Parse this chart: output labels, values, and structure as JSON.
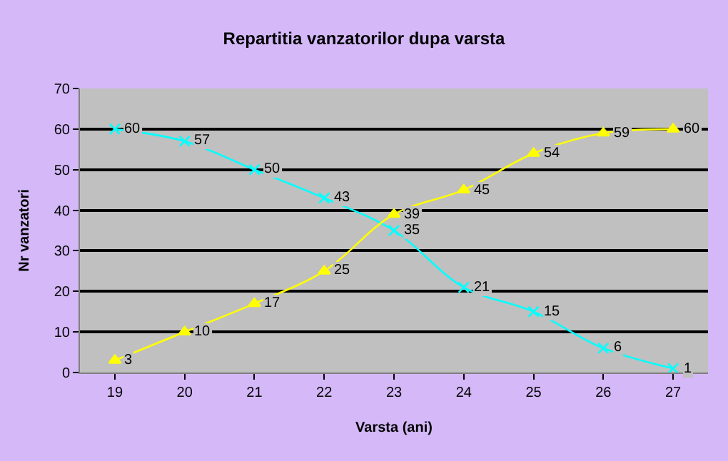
{
  "chart_data": {
    "type": "line",
    "title": "Repartitia vanzatorilor dupa varsta",
    "xlabel": "Varsta (ani)",
    "ylabel": "Nr vanzatori",
    "categories": [
      "19",
      "20",
      "21",
      "22",
      "23",
      "24",
      "25",
      "26",
      "27"
    ],
    "series": [
      {
        "color": "#00ffff",
        "marker": "cross",
        "values": [
          60,
          57,
          50,
          43,
          35,
          21,
          15,
          6,
          1
        ]
      },
      {
        "color": "#ffff00",
        "marker": "triangle",
        "values": [
          3,
          10,
          17,
          25,
          39,
          45,
          54,
          59,
          60
        ]
      }
    ],
    "ylim": [
      0,
      70
    ],
    "yticks": [
      0,
      10,
      20,
      30,
      40,
      50,
      60,
      70
    ],
    "grid": "y",
    "legend": false,
    "data_labels": true,
    "line_style": "solid"
  }
}
